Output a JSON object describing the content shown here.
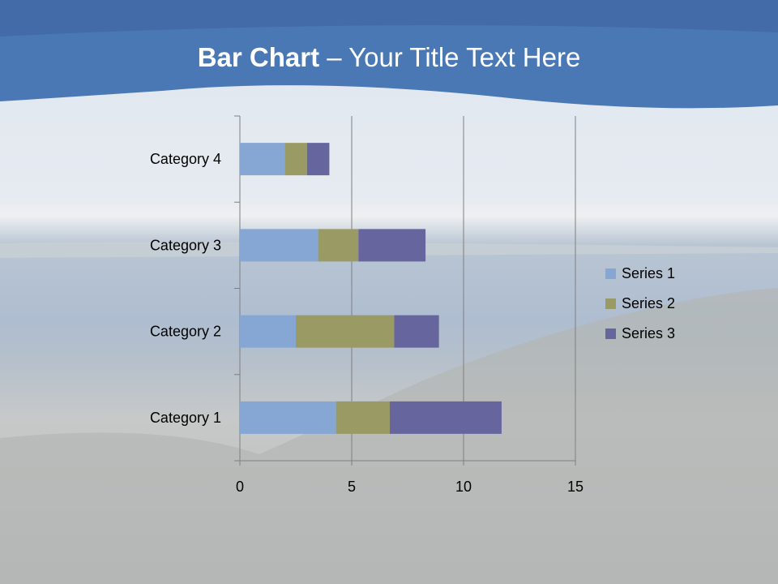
{
  "title": {
    "bold": "Bar Chart",
    "rest": " – Your Title Text Here"
  },
  "chart_data": {
    "type": "bar",
    "orientation": "horizontal",
    "stacked": true,
    "categories": [
      "Category 1",
      "Category 2",
      "Category 3",
      "Category 4"
    ],
    "series": [
      {
        "name": "Series 1",
        "values": [
          4.3,
          2.5,
          3.5,
          2
        ],
        "color": "#86a6d3"
      },
      {
        "name": "Series 2",
        "values": [
          2.4,
          4.4,
          1.8,
          1
        ],
        "color": "#9a9a64"
      },
      {
        "name": "Series 3",
        "values": [
          5,
          2,
          3,
          1
        ],
        "color": "#67659d"
      }
    ],
    "xlim": [
      0,
      15
    ],
    "xticks": [
      "0",
      "5",
      "10",
      "15"
    ],
    "grid": true,
    "legend": "right"
  }
}
